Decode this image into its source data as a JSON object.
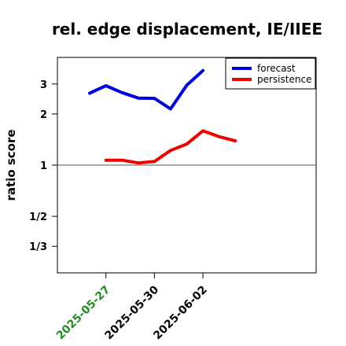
{
  "chart_data": {
    "type": "line",
    "title": "rel. edge displacement, IE/IIEE",
    "xlabel": "",
    "ylabel": "ratio score",
    "scale": "log",
    "y_ticks": [
      {
        "value": 3,
        "label": "3"
      },
      {
        "value": 2,
        "label": "2"
      },
      {
        "value": 1,
        "label": "1"
      },
      {
        "value": 0.5,
        "label": "1/2"
      },
      {
        "value": 0.3333,
        "label": "1/3"
      }
    ],
    "ylim": [
      0.2326,
      4.3
    ],
    "xlim": [
      "2025-05-24",
      "2025-06-09"
    ],
    "x_ticks": [
      {
        "date": "2025-05-27",
        "label": "2025-05-27",
        "color": "#228B22"
      },
      {
        "date": "2025-05-30",
        "label": "2025-05-30",
        "color": "#000000"
      },
      {
        "date": "2025-06-02",
        "label": "2025-06-02",
        "color": "#000000"
      }
    ],
    "reference_line": 1,
    "legend_position": "top-right",
    "series": [
      {
        "name": "forecast",
        "color": "#0000dd",
        "points": [
          {
            "date": "2025-05-26",
            "y": 2.65
          },
          {
            "date": "2025-05-27",
            "y": 2.93
          },
          {
            "date": "2025-05-28",
            "y": 2.67
          },
          {
            "date": "2025-05-29",
            "y": 2.48
          },
          {
            "date": "2025-05-30",
            "y": 2.47
          },
          {
            "date": "2025-05-31",
            "y": 2.14
          },
          {
            "date": "2025-06-01",
            "y": 2.95
          },
          {
            "date": "2025-06-02",
            "y": 3.6
          }
        ]
      },
      {
        "name": "persistence",
        "color": "#ee0000",
        "points": [
          {
            "date": "2025-05-27",
            "y": 1.07
          },
          {
            "date": "2025-05-28",
            "y": 1.07
          },
          {
            "date": "2025-05-29",
            "y": 1.03
          },
          {
            "date": "2025-05-30",
            "y": 1.05
          },
          {
            "date": "2025-05-31",
            "y": 1.22
          },
          {
            "date": "2025-06-01",
            "y": 1.33
          },
          {
            "date": "2025-06-02",
            "y": 1.59
          },
          {
            "date": "2025-06-03",
            "y": 1.47
          },
          {
            "date": "2025-06-04",
            "y": 1.39
          }
        ]
      }
    ]
  }
}
